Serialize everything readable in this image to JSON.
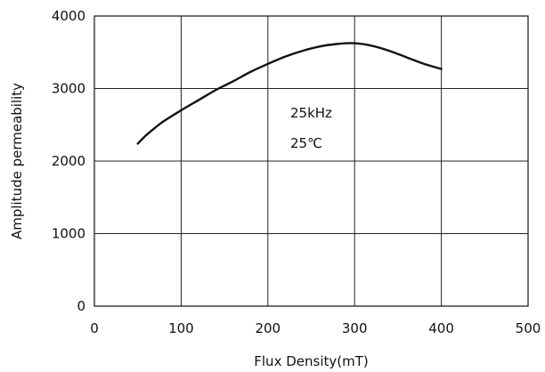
{
  "chart_data": {
    "type": "line",
    "title": "",
    "xlabel": "Flux Density(mT)",
    "ylabel": "Amplitude permeability",
    "xlim": [
      0,
      500
    ],
    "ylim": [
      0,
      4000
    ],
    "xticks": [
      0,
      100,
      200,
      300,
      400,
      500
    ],
    "yticks": [
      0,
      1000,
      2000,
      3000,
      4000
    ],
    "grid": true,
    "annotations": [
      "25kHz",
      "25℃"
    ],
    "series": [
      {
        "x": [
          50,
          60,
          70,
          80,
          100,
          120,
          140,
          160,
          180,
          200,
          220,
          240,
          260,
          280,
          300,
          320,
          340,
          360,
          380,
          400
        ],
        "y": [
          2240,
          2360,
          2460,
          2550,
          2700,
          2840,
          2980,
          3100,
          3230,
          3340,
          3440,
          3520,
          3580,
          3615,
          3625,
          3590,
          3520,
          3430,
          3340,
          3270
        ],
        "color": "#111111"
      }
    ]
  }
}
